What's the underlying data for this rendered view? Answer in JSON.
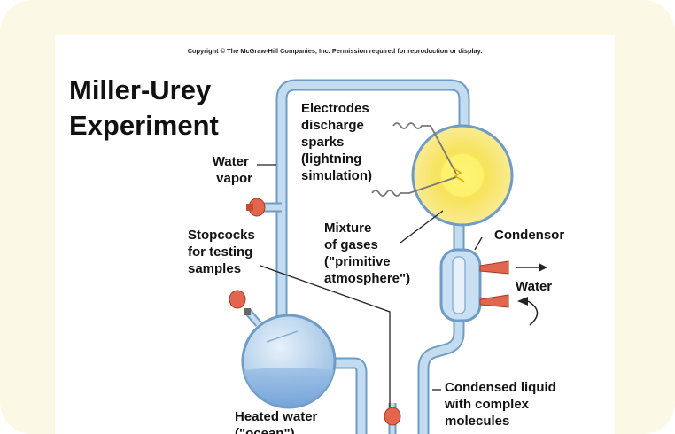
{
  "copyright": "Copyright © The McGraw-Hill Companies, Inc. Permission required for reproduction or display.",
  "title": {
    "line1": "Miller-Urey",
    "line2": "Experiment"
  },
  "labels": {
    "water_vapor": [
      "Water",
      "vapor"
    ],
    "electrodes": [
      "Electrodes",
      "discharge",
      "sparks",
      "(lightning",
      "simulation)"
    ],
    "stopcocks": [
      "Stopcocks",
      "for testing",
      "samples"
    ],
    "gases": [
      "Mixture",
      "of gases",
      "(\"primitive",
      "atmosphere\")"
    ],
    "condensor": "Condensor",
    "water": "Water",
    "condensed": [
      "Condensed liquid",
      "with complex",
      "molecules"
    ],
    "heated": [
      "Heated water",
      "(\"ocean\")"
    ]
  },
  "colors": {
    "frame": "#fcf8e6",
    "tube": "#c3dcf0",
    "tube_edge": "#6f9cc6",
    "stopcock": "#e2664e",
    "spark": "#f6e35a"
  }
}
